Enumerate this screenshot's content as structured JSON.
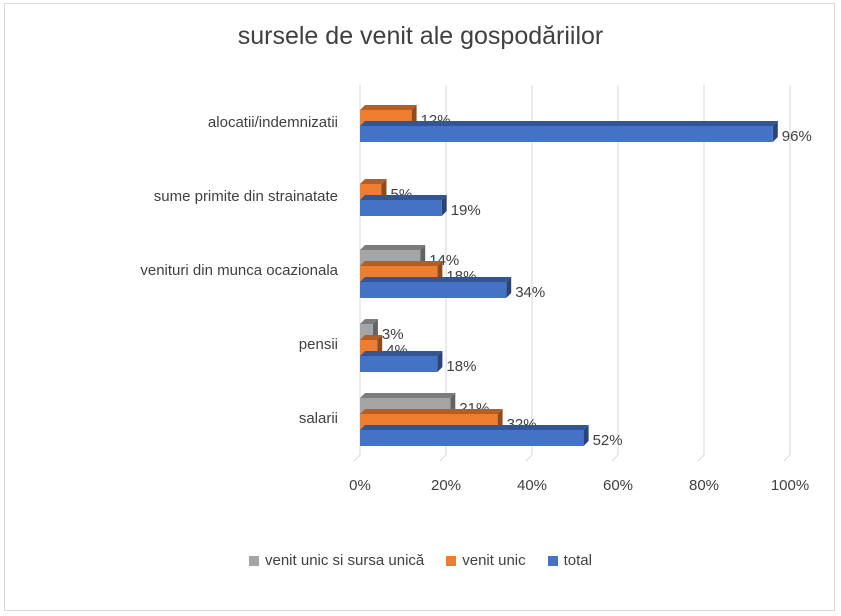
{
  "chart_data": {
    "type": "bar",
    "orientation": "horizontal",
    "title": "sursele de venit ale gospodăriilor",
    "categories": [
      "salarii",
      "pensii",
      "venituri din munca ocazionala",
      "sume primite din strainatate",
      "alocatii/indemnizatii"
    ],
    "series": [
      {
        "name": "venit unic si sursa unică",
        "color": "#a5a5a5",
        "values": [
          21,
          3,
          14,
          null,
          null
        ]
      },
      {
        "name": "venit unic",
        "color": "#ed7d31",
        "values": [
          32,
          4,
          18,
          5,
          12
        ]
      },
      {
        "name": "total",
        "color": "#4472c4",
        "values": [
          52,
          18,
          34,
          19,
          96
        ]
      }
    ],
    "value_suffix": "%",
    "xlim": [
      0,
      100
    ],
    "xticks": [
      "0%",
      "20%",
      "40%",
      "60%",
      "80%",
      "100%"
    ],
    "grid": true,
    "legend_position": "bottom"
  }
}
